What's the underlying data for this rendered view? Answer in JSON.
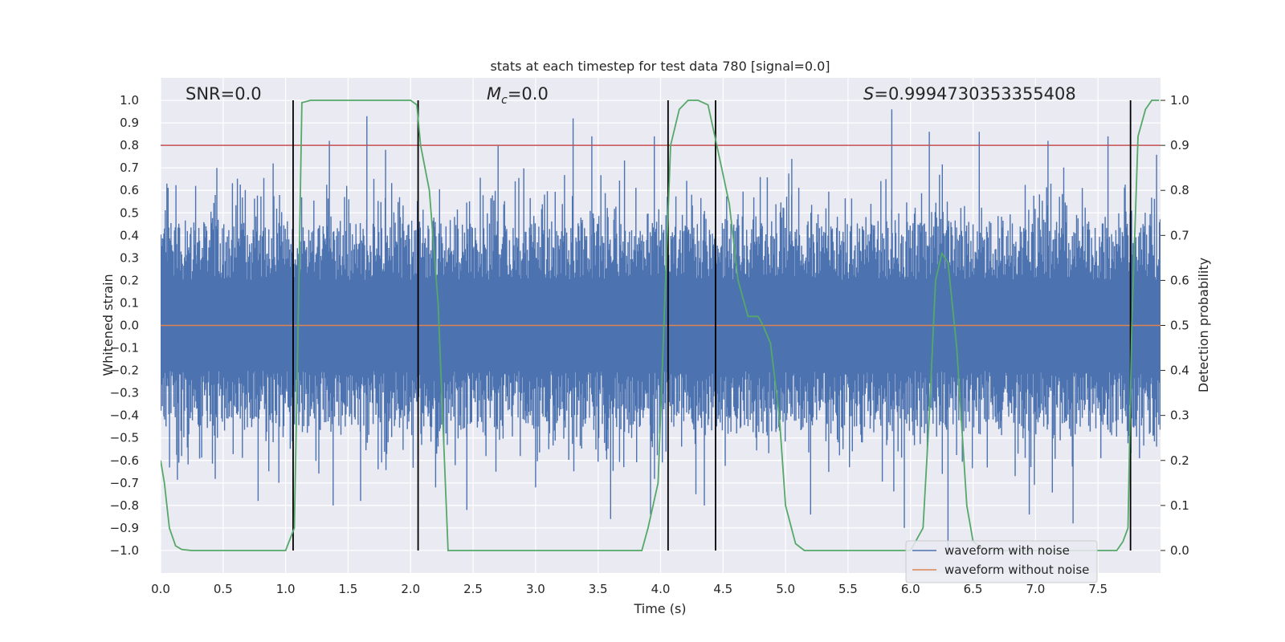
{
  "chart_data": {
    "type": "line",
    "title": "stats at each timestep for test data 780 [signal=0.0]",
    "xlabel": "Time (s)",
    "ylabel": "Whitened strain",
    "y2label": "Detection probability",
    "xlim": [
      0.0,
      8.0
    ],
    "ylim": [
      -1.1,
      1.1
    ],
    "y2lim": [
      -0.05,
      1.05
    ],
    "xticks": [
      "0.0",
      "0.5",
      "1.0",
      "1.5",
      "2.0",
      "2.5",
      "3.0",
      "3.5",
      "4.0",
      "4.5",
      "5.0",
      "5.5",
      "6.0",
      "6.5",
      "7.0",
      "7.5"
    ],
    "yticks": [
      "1.0",
      "0.9",
      "0.8",
      "0.7",
      "0.6",
      "0.5",
      "0.4",
      "0.3",
      "0.2",
      "0.1",
      "0.0",
      "−0.1",
      "−0.2",
      "−0.3",
      "−0.4",
      "−0.5",
      "−0.6",
      "−0.7",
      "−0.8",
      "−0.9",
      "−1.0"
    ],
    "y2ticks": [
      "1.0",
      "0.9",
      "0.8",
      "0.7",
      "0.6",
      "0.5",
      "0.4",
      "0.3",
      "0.2",
      "0.1",
      "0.0"
    ],
    "annotations": {
      "snr": "SNR=0.0",
      "mc_base": "M",
      "mc_sub": "c",
      "mc_value": "=0.0",
      "s_symbol": "S",
      "s_value": "=0.9994730353355408"
    },
    "threshold": {
      "value": 0.9,
      "axis": "right",
      "color": "#c44e52"
    },
    "event_lines_x": [
      1.06,
      2.06,
      4.06,
      4.44,
      7.76
    ],
    "series": [
      {
        "name": "waveform with noise",
        "color": "#4c72b0",
        "kind": "dense-noise",
        "typical_range": [
          -0.45,
          0.45
        ],
        "peaks": [
          {
            "x": 0.05,
            "y": 0.63
          },
          {
            "x": 0.28,
            "y": 0.62
          },
          {
            "x": 0.45,
            "y": 0.7
          },
          {
            "x": 0.9,
            "y": 0.72
          },
          {
            "x": 1.35,
            "y": 0.82
          },
          {
            "x": 1.65,
            "y": 0.93
          },
          {
            "x": 1.8,
            "y": 0.78
          },
          {
            "x": 2.7,
            "y": 0.8
          },
          {
            "x": 3.3,
            "y": 0.92
          },
          {
            "x": 3.45,
            "y": 0.84
          },
          {
            "x": 3.95,
            "y": 0.84
          },
          {
            "x": 5.05,
            "y": 0.74
          },
          {
            "x": 5.85,
            "y": 0.96
          },
          {
            "x": 6.15,
            "y": 0.86
          },
          {
            "x": 6.55,
            "y": 0.86
          },
          {
            "x": 7.1,
            "y": 0.82
          },
          {
            "x": 7.58,
            "y": 0.84
          }
        ],
        "troughs": [
          {
            "x": 0.78,
            "y": -0.78
          },
          {
            "x": 1.38,
            "y": -0.8
          },
          {
            "x": 1.6,
            "y": -0.78
          },
          {
            "x": 2.2,
            "y": -0.72
          },
          {
            "x": 2.45,
            "y": -0.82
          },
          {
            "x": 3.0,
            "y": -0.72
          },
          {
            "x": 3.6,
            "y": -0.86
          },
          {
            "x": 3.92,
            "y": -0.84
          },
          {
            "x": 4.35,
            "y": -0.8
          },
          {
            "x": 5.2,
            "y": -0.84
          },
          {
            "x": 5.95,
            "y": -0.9
          },
          {
            "x": 6.3,
            "y": -1.0
          },
          {
            "x": 6.95,
            "y": -0.84
          },
          {
            "x": 7.3,
            "y": -0.88
          }
        ]
      },
      {
        "name": "waveform without noise",
        "color": "#dd8452",
        "x": [
          0.0,
          8.0
        ],
        "y": [
          0.0,
          0.0
        ]
      },
      {
        "name": "",
        "axis": "right",
        "color": "#55a868",
        "x": [
          0.0,
          0.03,
          0.07,
          0.12,
          0.17,
          0.25,
          0.5,
          0.8,
          1.0,
          1.07,
          1.1,
          1.13,
          1.2,
          1.5,
          1.8,
          2.0,
          2.05,
          2.08,
          2.15,
          2.22,
          2.3,
          2.5,
          3.0,
          3.5,
          3.85,
          3.9,
          3.98,
          4.04,
          4.08,
          4.15,
          4.22,
          4.3,
          4.38,
          4.45,
          4.55,
          4.62,
          4.7,
          4.78,
          4.82,
          4.88,
          4.95,
          5.0,
          5.08,
          5.15,
          5.5,
          5.8,
          6.0,
          6.1,
          6.15,
          6.2,
          6.25,
          6.3,
          6.37,
          6.45,
          6.5,
          6.6,
          7.0,
          7.5,
          7.65,
          7.7,
          7.74,
          7.77,
          7.82,
          7.88,
          7.93,
          7.96,
          7.99
        ],
        "y": [
          0.2,
          0.15,
          0.05,
          0.01,
          0.002,
          0.0,
          0.0,
          0.0,
          0.0,
          0.05,
          0.5,
          0.995,
          1.0,
          1.0,
          1.0,
          1.0,
          0.99,
          0.9,
          0.8,
          0.55,
          0.0,
          0.0,
          0.0,
          0.0,
          0.0,
          0.05,
          0.15,
          0.6,
          0.9,
          0.98,
          1.0,
          1.0,
          0.99,
          0.9,
          0.77,
          0.6,
          0.52,
          0.52,
          0.5,
          0.46,
          0.3,
          0.1,
          0.015,
          0.0,
          0.0,
          0.0,
          0.0,
          0.05,
          0.3,
          0.6,
          0.66,
          0.64,
          0.45,
          0.1,
          0.02,
          0.0,
          0.0,
          0.0,
          0.0,
          0.02,
          0.05,
          0.5,
          0.92,
          0.98,
          1.0,
          1.0,
          1.0
        ]
      }
    ],
    "legend": {
      "position": "lower-right",
      "entries": [
        {
          "label": "waveform with noise",
          "color": "#4c72b0"
        },
        {
          "label": "waveform without noise",
          "color": "#dd8452"
        }
      ]
    },
    "style": {
      "background": "#eaeaf2",
      "grid": true,
      "grid_color": "#ffffff"
    }
  }
}
